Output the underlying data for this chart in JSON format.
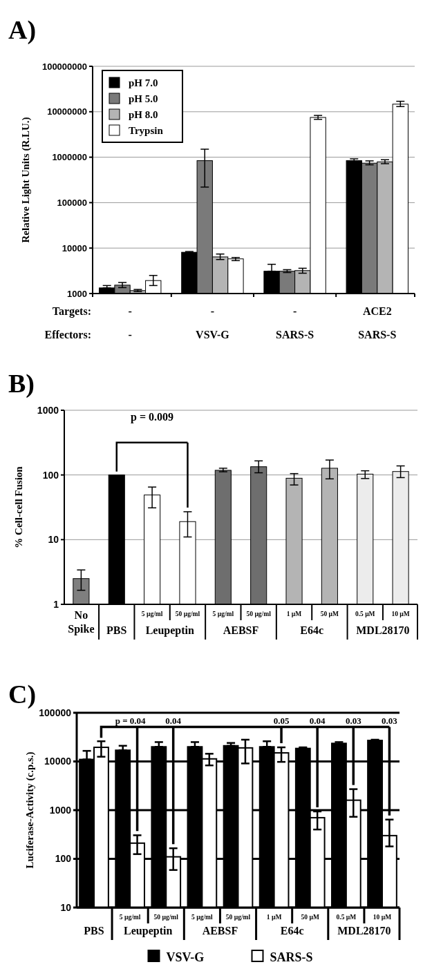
{
  "chart_data": [
    {
      "type": "bar",
      "title": "A)",
      "ylabel": "Relative Light Units (R.LU.)",
      "xlabel": "Targets:\nEffectors:",
      "categories": [
        "-\n-",
        "-\nVSV-G",
        "-\nSARS-S",
        "ACE2\nSARS-S"
      ],
      "log": true,
      "ylim": [
        1000,
        100000000
      ],
      "yticks": [
        1000,
        10000,
        100000,
        1000000,
        10000000,
        100000000
      ],
      "grid": "y",
      "legend": "top left",
      "series": [
        {
          "name": "pH 7.0",
          "color": "#000000",
          "values": [
            1330,
            8100,
            3100,
            840000
          ],
          "errors": [
            [
              1330,
              1500
            ],
            [
              7800,
              8400
            ],
            [
              3100,
              4400
            ],
            [
              790000,
              920000
            ]
          ]
        },
        {
          "name": "pH 5.0",
          "color": "#7a7a7a",
          "values": [
            1530,
            840000,
            3100,
            740000
          ],
          "errors": [
            [
              1350,
              1750
            ],
            [
              220000,
              1500000
            ],
            [
              2900,
              3350
            ],
            [
              680000,
              830000
            ]
          ]
        },
        {
          "name": "pH 8.0",
          "color": "#b4b4b4",
          "values": [
            1160,
            6400,
            3200,
            790000
          ],
          "errors": [
            [
              1100,
              1230
            ],
            [
              5600,
              7400
            ],
            [
              2800,
              3600
            ],
            [
              720000,
              880000
            ]
          ]
        },
        {
          "name": "Trypsin",
          "color": "#ffffff",
          "values": [
            1930,
            5800,
            7500000,
            14700000
          ],
          "errors": [
            [
              1500,
              2500
            ],
            [
              5300,
              6200
            ],
            [
              6800000,
              8300000
            ],
            [
              13000000,
              17000000
            ]
          ]
        }
      ]
    },
    {
      "type": "bar",
      "title": "B)",
      "ylabel": "% Cell-cell Fusion",
      "categories": [
        "No Spike",
        "PBS",
        "5 µg/ml",
        "50 µg/ml",
        "5 µg/ml",
        "50 µg/ml",
        "1 µM",
        "50 µM",
        "0.5 µM",
        "10 µM"
      ],
      "log": true,
      "ylim": [
        1,
        1000
      ],
      "yticks": [
        1,
        10,
        100,
        1000
      ],
      "grid": "y",
      "values": [
        2.5,
        100,
        49,
        19,
        118,
        134,
        89,
        127,
        103,
        113
      ],
      "colors": [
        "#7f7f7f",
        "#000000",
        "#ffffff",
        "#ffffff",
        "#6e6e6e",
        "#6e6e6e",
        "#b4b4b4",
        "#b4b4b4",
        "#ececec",
        "#ececec"
      ],
      "errors": [
        [
          1.65,
          3.4
        ],
        null,
        [
          31,
          65
        ],
        [
          11,
          27
        ],
        [
          112,
          127
        ],
        [
          108,
          165
        ],
        [
          70,
          105
        ],
        [
          87,
          170
        ],
        [
          88,
          116
        ],
        [
          91,
          138
        ]
      ],
      "annotations": [
        "Leupeptin",
        "AEBSF",
        "E64c",
        "MDL28170",
        "p = 0.009"
      ]
    },
    {
      "type": "bar",
      "title": "C)",
      "ylabel": "Luciferase-Activity (c.p.s.)",
      "categories": [
        "PBS",
        "5 µg/ml",
        "50 µg/ml",
        "5 µg/ml",
        "50 µg/ml",
        "1 µM",
        "50 µM",
        "0.5 µM",
        "10 µM"
      ],
      "log": true,
      "ylim": [
        10,
        100000
      ],
      "yticks": [
        10,
        100,
        1000,
        10000,
        100000
      ],
      "grid": "y",
      "legend": "bottom",
      "series": [
        {
          "name": "VSV-G",
          "color": "#000000",
          "values": [
            11000,
            17000,
            20000,
            20000,
            21000,
            20000,
            18500,
            23500,
            27000
          ],
          "errors": [
            [
              11000,
              16500
            ],
            [
              17000,
              21000
            ],
            [
              20000,
              25000
            ],
            [
              20000,
              25000
            ],
            [
              21000,
              24000
            ],
            [
              20000,
              26000
            ],
            [
              18500,
              19500
            ],
            [
              22000,
              25000
            ],
            [
              26000,
              28000
            ]
          ]
        },
        {
          "name": "SARS-S",
          "color": "#ffffff",
          "values": [
            19500,
            210,
            110,
            11300,
            19000,
            15000,
            700,
            1600,
            300
          ],
          "errors": [
            [
              12500,
              26000
            ],
            [
              125,
              305
            ],
            [
              59,
              165
            ],
            [
              8300,
              14400
            ],
            [
              9100,
              28000
            ],
            [
              9800,
              19500
            ],
            [
              400,
              940
            ],
            [
              730,
              2700
            ],
            [
              180,
              640
            ]
          ]
        }
      ],
      "annotations": [
        "Leupeptin",
        "AEBSF",
        "E64c",
        "MDL28170",
        "p = 0.04",
        "0.04",
        "0.05",
        "0.04",
        "0.03",
        "0.03"
      ]
    }
  ]
}
